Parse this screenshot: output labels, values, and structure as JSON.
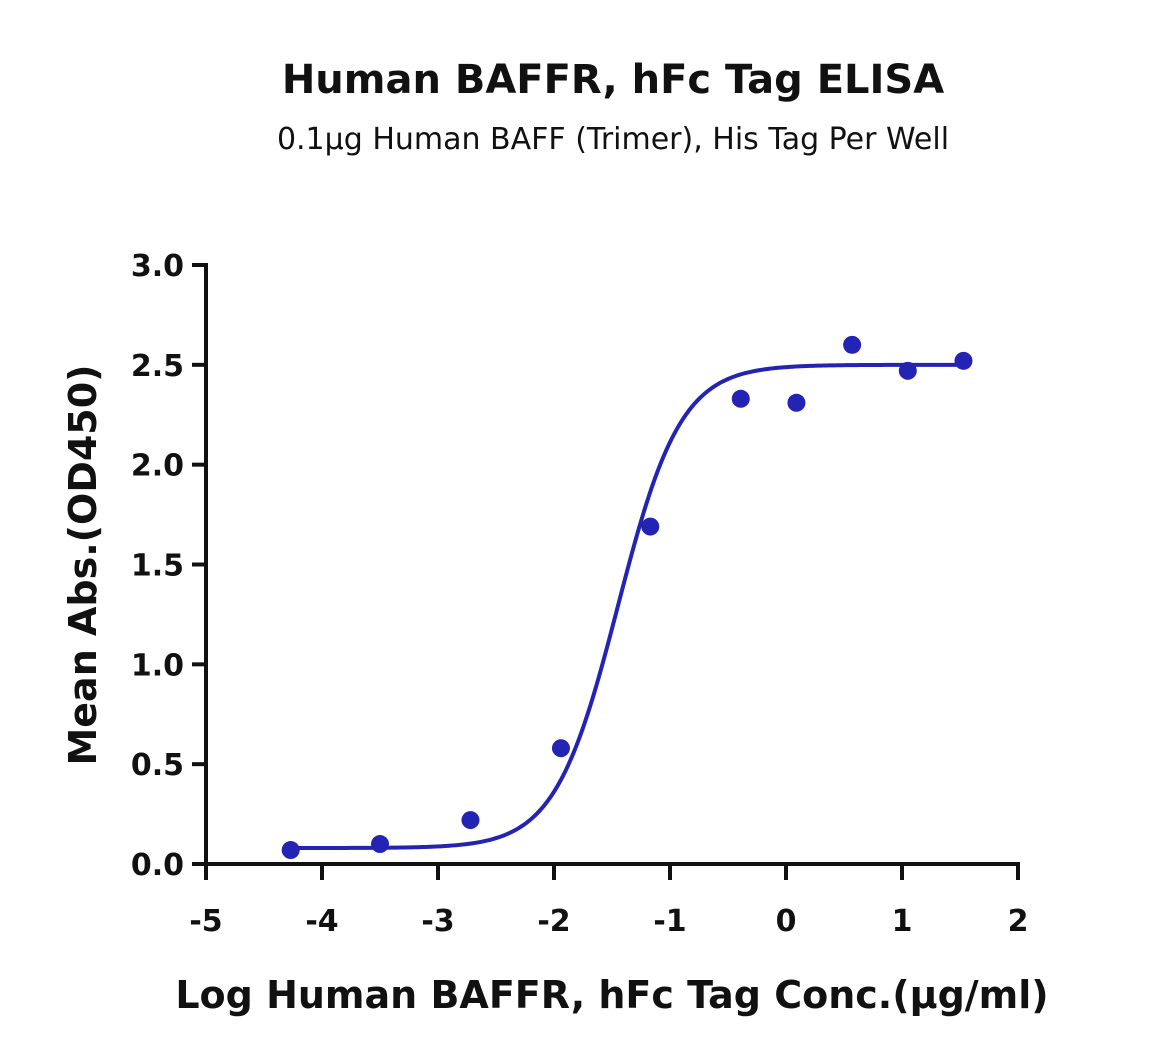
{
  "chart_data": {
    "type": "scatter",
    "title": "Human BAFFR, hFc Tag ELISA",
    "subtitle": "0.1µg Human BAFF (Trimer), His Tag Per Well",
    "xlabel": "Log Human BAFFR, hFc Tag Conc.(µg/ml)",
    "ylabel": "Mean Abs.(OD450)",
    "xlim": [
      -5,
      2
    ],
    "ylim": [
      0,
      3
    ],
    "xticks": [
      "-5",
      "-4",
      "-3",
      "-2",
      "-1",
      "0",
      "1",
      "2"
    ],
    "yticks": [
      "0.0",
      "0.5",
      "1.0",
      "1.5",
      "2.0",
      "2.5",
      "3.0"
    ],
    "grid": false,
    "colors": {
      "series": "#2323b4",
      "axis": "#111111"
    },
    "series": [
      {
        "x": [
          -4.27,
          -3.5,
          -2.72,
          -1.94,
          -1.17,
          -0.39,
          0.09,
          0.57,
          1.05,
          1.53
        ],
        "y": [
          0.07,
          0.1,
          0.22,
          0.58,
          1.69,
          2.33,
          2.31,
          2.6,
          2.47,
          2.52
        ],
        "fit": {
          "model": "4PL",
          "bottom": 0.08,
          "top": 2.5,
          "logEC50": -1.45,
          "hill": 1.6
        }
      }
    ]
  }
}
